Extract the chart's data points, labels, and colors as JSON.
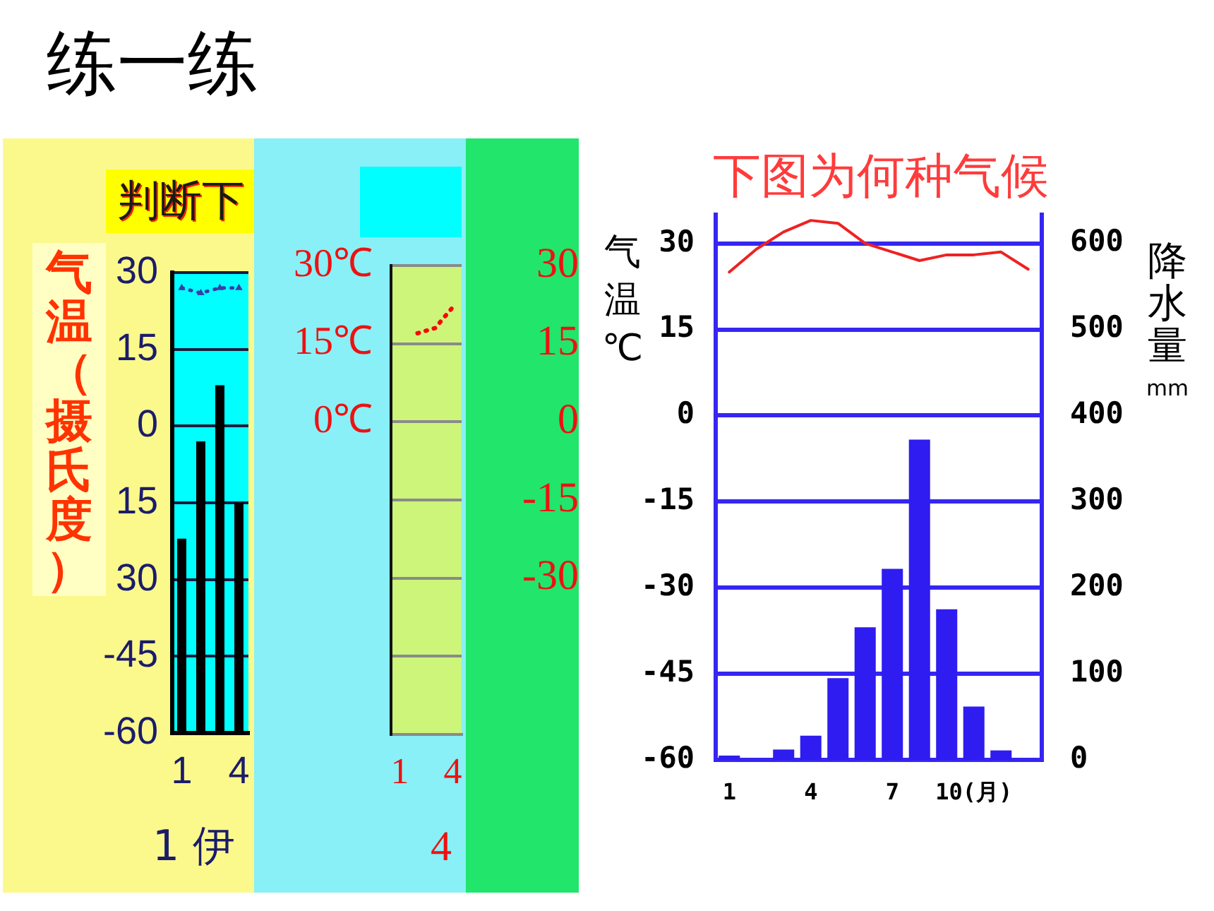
{
  "chart_data": [
    {
      "type": "bar",
      "title": "练一练",
      "subtitle": "判断下",
      "xlabel": "1 伊",
      "ylabel": "气温（摄氏度）",
      "categories": [
        "1",
        null,
        null,
        "4"
      ],
      "series": [
        {
          "type": "bar",
          "color": "#000000",
          "base": [
            -60,
            -60,
            -60,
            -60
          ],
          "values": [
            38,
            57,
            68,
            45
          ]
        },
        {
          "type": "line",
          "color": "#3c3ca8",
          "values": [
            27,
            26,
            27,
            27
          ],
          "marker": "triangle",
          "line_style": "dotted"
        }
      ],
      "ylim": [
        -60,
        30
      ],
      "yticks": [
        30,
        15,
        0,
        {
          "value": -15,
          "label": "15"
        },
        {
          "value": -30,
          "label": "30"
        },
        -45,
        -60
      ],
      "grid": "y"
    },
    {
      "type": "line",
      "xlabel": "4",
      "categories": [
        "1",
        null,
        null,
        "4"
      ],
      "series": [
        {
          "color": "#ff0000",
          "values": [
            null,
            17,
            18,
            22
          ],
          "line_style": "dotted"
        }
      ],
      "ylim": [
        -60,
        30
      ],
      "yticks": [
        {
          "value": 30,
          "label": "30℃"
        },
        {
          "value": 15,
          "label": "15℃"
        },
        {
          "value": 0,
          "label": "0℃"
        },
        {
          "value": -15,
          "label": null
        },
        {
          "value": -30,
          "label": null
        },
        {
          "value": -45,
          "label": null
        },
        {
          "value": -60,
          "label": null
        }
      ],
      "y2lim": [
        -60,
        30
      ],
      "y2ticks": [
        30,
        15,
        0,
        -15,
        -30
      ],
      "grid": "y"
    },
    {
      "type": "bar",
      "title": "下图为何种气候",
      "ylabel": "气温℃",
      "y2label": "降水量mm",
      "categories": [
        "1",
        null,
        null,
        "4",
        null,
        null,
        "7",
        null,
        null,
        "10(月)",
        null,
        null
      ],
      "series": [
        {
          "type": "bar",
          "axis": "y2",
          "color": "#2f1cf0",
          "values": [
            5,
            0,
            12,
            28,
            95,
            154,
            222,
            372,
            175,
            62,
            11,
            0
          ]
        },
        {
          "type": "line",
          "color": "#ee2222",
          "values": [
            25,
            29,
            32,
            34,
            33.5,
            30,
            28.5,
            27,
            28,
            28,
            28.5,
            25.5
          ]
        }
      ],
      "ylim": [
        -60,
        35
      ],
      "yticks": [
        30,
        15,
        0,
        -15,
        -30,
        -45,
        -60
      ],
      "y2lim": [
        0,
        633.3
      ],
      "y2ticks": [
        0,
        100,
        200,
        300,
        400,
        500,
        600
      ],
      "grid": "y"
    }
  ]
}
